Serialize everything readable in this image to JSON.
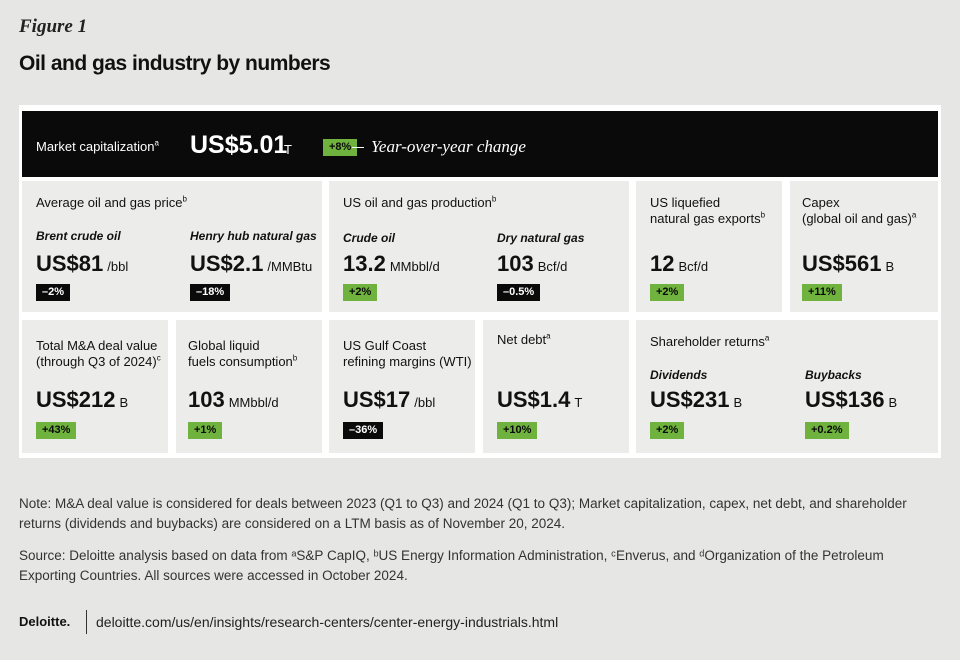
{
  "figure_label": "Figure 1",
  "title": "Oil and gas industry by numbers",
  "hero": {
    "label": "Market capitalization",
    "sup": "a",
    "value": "US$5.01",
    "unit": "T",
    "change": "+8%",
    "change_caption": "Year-over-year change"
  },
  "tiles": {
    "avg_price": {
      "label": "Average oil and gas price",
      "sup": "b",
      "brent": {
        "sub": "Brent crude oil",
        "value": "US$81",
        "unit": "/bbl",
        "change": "–2%"
      },
      "henry": {
        "sub": "Henry hub natural gas",
        "value": "US$2.1",
        "unit": "/MMBtu",
        "change": "–18%"
      }
    },
    "production": {
      "label": "US oil and gas production",
      "sup": "b",
      "crude": {
        "sub": "Crude oil",
        "value": "13.2",
        "unit": "MMbbl/d",
        "change": "+2%"
      },
      "gas": {
        "sub": "Dry natural gas",
        "value": "103",
        "unit": "Bcf/d",
        "change": "–0.5%"
      }
    },
    "lng": {
      "label_line1": "US liquefied",
      "label_line2": "natural gas exports",
      "sup": "b",
      "value": "12",
      "unit": "Bcf/d",
      "change": "+2%"
    },
    "capex": {
      "label_line1": "Capex",
      "label_line2": "(global oil and gas)",
      "sup": "a",
      "value": "US$561",
      "unit": "B",
      "change": "+11%"
    },
    "ma": {
      "label_line1": "Total M&A deal value",
      "label_line2": "(through Q3 of 2024)",
      "sup": "c",
      "value": "US$212",
      "unit": "B",
      "change": "+43%"
    },
    "liquid": {
      "label_line1": "Global liquid",
      "label_line2": "fuels consumption",
      "sup": "b",
      "value": "103",
      "unit": "MMbbl/d",
      "change": "+1%"
    },
    "refining": {
      "label_line1": "US Gulf Coast",
      "label_line2": "refining margins (WTI)",
      "value": "US$17",
      "unit": "/bbl",
      "change": "–36%"
    },
    "netdebt": {
      "label": "Net debt",
      "sup": "a",
      "value": "US$1.4",
      "unit": "T",
      "change": "+10%"
    },
    "shareholder": {
      "label": "Shareholder returns",
      "sup": "a",
      "dividends": {
        "sub": "Dividends",
        "value": "US$231",
        "unit": "B",
        "change": "+2%"
      },
      "buybacks": {
        "sub": "Buybacks",
        "value": "US$136",
        "unit": "B",
        "change": "+0.2%"
      }
    }
  },
  "note": "Note: M&A deal value is considered for deals between 2023 (Q1 to Q3) and 2024 (Q1 to Q3); Market capitalization, capex, net debt, and shareholder returns (dividends and buybacks) are considered on a LTM basis as of November 20, 2024.",
  "source": "Source: Deloitte analysis based on data from ᵃS&P CapIQ, ᵇUS Energy Information Administration, ᶜEnverus, and ᵈOrganization of the Petroleum Exporting Countries. All sources were accessed in October 2024.",
  "brand": "Deloitte.",
  "url": "deloitte.com/us/en/insights/research-centers/center-energy-industrials.html",
  "colors": {
    "positive": "#6fb23d",
    "negative": "#0a0a0a",
    "hero_bg": "#0a0a0a",
    "tile_bg": "#ececea"
  }
}
